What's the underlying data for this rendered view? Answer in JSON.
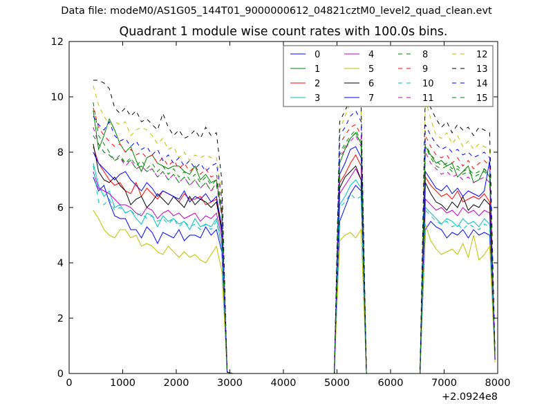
{
  "header": {
    "suptitle": "Data file: modeM0/AS1G05_144T01_9000000612_04821cztM0_level2_quad_clean.evt",
    "title": "Quadrant 1 module wise count rates with 100.0s bins."
  },
  "chart_data": {
    "type": "line",
    "title": "Quadrant 1 module wise count rates with 100.0s bins.",
    "xlabel": "",
    "ylabel": "",
    "x_offset_label": "+2.0924e8",
    "xlim": [
      0,
      8000
    ],
    "ylim": [
      0,
      12
    ],
    "xticks": [
      "0",
      "1000",
      "2000",
      "3000",
      "4000",
      "5000",
      "6000",
      "7000",
      "8000"
    ],
    "yticks": [
      "0",
      "2",
      "4",
      "6",
      "8",
      "10",
      "12"
    ],
    "grid": false,
    "legend_position": "top-right",
    "x": [
      450,
      550,
      650,
      750,
      850,
      950,
      1050,
      1150,
      1250,
      1350,
      1450,
      1550,
      1650,
      1750,
      1850,
      1950,
      2050,
      2150,
      2250,
      2350,
      2450,
      2550,
      2650,
      2750,
      2850,
      2950,
      3050,
      4950,
      5050,
      5150,
      5250,
      5350,
      5450,
      5550,
      6550,
      6650,
      6750,
      6850,
      6950,
      7050,
      7150,
      7250,
      7350,
      7450,
      7550,
      7650,
      7750,
      7850,
      7950
    ],
    "series": [
      {
        "name": "0",
        "color": "#0000ff",
        "dash": "solid",
        "values": [
          7.1,
          6.6,
          6.8,
          6.2,
          5.7,
          5.6,
          5.6,
          5.2,
          5.2,
          4.9,
          5.3,
          5.1,
          4.7,
          5.1,
          5.0,
          4.9,
          5.2,
          4.8,
          5.0,
          5.0,
          4.9,
          5.3,
          5.0,
          5.2,
          4.4,
          0.05,
          0.0,
          0.0,
          5.5,
          6.0,
          6.5,
          6.8,
          6.6,
          0.0,
          0.0,
          5.2,
          5.5,
          5.3,
          5.2,
          4.9,
          5.1,
          5.0,
          5.2,
          4.9,
          5.2,
          5.0,
          5.1,
          5.0,
          0.5
        ]
      },
      {
        "name": "1",
        "color": "#008000",
        "dash": "solid",
        "values": [
          9.5,
          8.1,
          8.6,
          9.2,
          8.8,
          8.3,
          8.0,
          8.2,
          7.7,
          7.3,
          7.8,
          7.9,
          7.6,
          7.5,
          7.4,
          7.5,
          7.5,
          7.3,
          7.2,
          7.5,
          7.0,
          7.2,
          6.9,
          7.0,
          5.8,
          0.05,
          0.0,
          0.0,
          7.6,
          8.1,
          8.5,
          8.7,
          8.3,
          0.0,
          0.0,
          8.2,
          7.9,
          7.6,
          7.7,
          7.5,
          7.6,
          7.1,
          7.3,
          7.5,
          6.9,
          7.0,
          7.4,
          7.1,
          0.6
        ]
      },
      {
        "name": "2",
        "color": "#ff0000",
        "dash": "solid",
        "values": [
          8.2,
          7.6,
          7.3,
          7.0,
          6.8,
          6.9,
          6.6,
          6.5,
          6.9,
          6.4,
          6.7,
          6.5,
          6.3,
          6.6,
          6.5,
          6.4,
          6.2,
          6.5,
          6.3,
          6.3,
          6.4,
          6.1,
          6.2,
          6.3,
          5.2,
          0.05,
          0.0,
          0.0,
          6.9,
          7.2,
          7.6,
          7.9,
          7.5,
          0.0,
          0.0,
          7.1,
          6.8,
          6.6,
          6.4,
          6.5,
          6.3,
          6.6,
          6.2,
          6.3,
          6.4,
          6.3,
          6.5,
          6.2,
          0.5
        ]
      },
      {
        "name": "3",
        "color": "#00bfbf",
        "dash": "solid",
        "values": [
          7.6,
          6.8,
          6.4,
          6.6,
          6.0,
          6.1,
          5.8,
          5.9,
          5.6,
          5.4,
          5.8,
          5.7,
          5.3,
          5.7,
          5.5,
          5.6,
          5.4,
          5.5,
          5.2,
          5.6,
          5.3,
          5.4,
          5.3,
          5.6,
          4.6,
          0.05,
          0.0,
          0.0,
          6.1,
          6.4,
          6.8,
          7.0,
          6.7,
          0.0,
          0.0,
          6.0,
          5.8,
          5.6,
          5.4,
          5.6,
          5.5,
          5.3,
          5.6,
          5.4,
          5.5,
          5.3,
          5.6,
          5.4,
          0.5
        ]
      },
      {
        "name": "4",
        "color": "#bf00bf",
        "dash": "solid",
        "values": [
          7.3,
          6.7,
          6.6,
          6.5,
          6.3,
          6.1,
          6.1,
          6.0,
          5.8,
          5.7,
          6.0,
          5.9,
          5.6,
          5.8,
          5.9,
          5.7,
          5.8,
          5.6,
          5.7,
          5.8,
          5.5,
          5.7,
          5.6,
          5.8,
          4.9,
          0.05,
          0.0,
          0.0,
          6.5,
          6.8,
          7.1,
          7.4,
          7.0,
          0.0,
          0.0,
          6.3,
          6.1,
          5.9,
          6.0,
          5.8,
          5.9,
          5.7,
          6.0,
          5.8,
          5.9,
          5.7,
          5.9,
          5.8,
          0.5
        ]
      },
      {
        "name": "5",
        "color": "#bfbf00",
        "dash": "solid",
        "values": [
          5.9,
          5.6,
          5.2,
          5.0,
          4.9,
          5.2,
          5.2,
          4.9,
          5.0,
          4.6,
          4.7,
          4.6,
          4.4,
          4.3,
          4.6,
          4.4,
          4.2,
          4.4,
          4.2,
          4.3,
          4.1,
          4.0,
          4.3,
          4.6,
          3.7,
          0.05,
          0.0,
          0.0,
          4.8,
          5.0,
          5.1,
          4.9,
          5.2,
          0.0,
          0.0,
          5.4,
          4.8,
          4.5,
          4.3,
          4.4,
          4.5,
          4.3,
          4.7,
          4.2,
          5.0,
          4.1,
          4.3,
          4.6,
          0.4
        ]
      },
      {
        "name": "6",
        "color": "#000000",
        "dash": "solid",
        "values": [
          8.3,
          7.3,
          7.0,
          6.9,
          7.1,
          6.8,
          6.6,
          6.1,
          6.3,
          6.4,
          6.0,
          6.2,
          6.5,
          6.3,
          6.1,
          6.4,
          6.2,
          6.0,
          6.4,
          6.1,
          6.3,
          6.2,
          6.0,
          6.2,
          5.1,
          0.05,
          0.0,
          0.0,
          6.7,
          7.1,
          7.3,
          7.5,
          7.0,
          0.0,
          0.0,
          6.9,
          6.5,
          6.2,
          6.1,
          5.9,
          6.2,
          6.0,
          6.4,
          5.9,
          6.1,
          6.0,
          6.3,
          6.1,
          0.5
        ]
      },
      {
        "name": "7",
        "color": "#0000ff",
        "dash": "solid",
        "values": [
          8.0,
          7.6,
          7.4,
          7.2,
          7.0,
          7.2,
          7.3,
          7.0,
          6.8,
          6.6,
          6.9,
          6.7,
          6.4,
          6.6,
          6.5,
          6.4,
          6.3,
          6.6,
          6.2,
          6.4,
          6.3,
          6.5,
          6.2,
          6.4,
          5.3,
          0.05,
          0.0,
          0.0,
          7.2,
          7.6,
          8.1,
          8.2,
          7.8,
          0.0,
          0.0,
          7.3,
          7.0,
          6.7,
          6.6,
          6.8,
          6.5,
          6.7,
          6.4,
          6.6,
          6.5,
          6.4,
          6.6,
          7.7,
          0.5
        ]
      },
      {
        "name": "8",
        "color": "#008000",
        "dash": "dashed",
        "values": [
          9.8,
          8.6,
          8.3,
          8.0,
          7.7,
          7.9,
          7.6,
          7.8,
          7.5,
          7.7,
          7.4,
          7.6,
          7.3,
          7.5,
          7.2,
          7.4,
          7.1,
          7.3,
          7.0,
          7.2,
          6.9,
          7.1,
          6.8,
          7.0,
          5.9,
          0.05,
          0.0,
          0.0,
          8.0,
          8.3,
          8.6,
          8.8,
          8.4,
          0.0,
          0.0,
          8.3,
          7.9,
          7.7,
          7.5,
          7.6,
          7.4,
          7.5,
          7.3,
          7.4,
          7.2,
          7.3,
          7.4,
          7.2,
          0.6
        ]
      },
      {
        "name": "9",
        "color": "#ff0000",
        "dash": "dashed",
        "values": [
          9.6,
          8.9,
          8.6,
          8.4,
          8.2,
          8.3,
          8.0,
          8.1,
          7.9,
          8.0,
          7.8,
          7.9,
          7.6,
          7.8,
          7.5,
          7.7,
          7.4,
          7.6,
          7.3,
          7.5,
          7.2,
          7.4,
          7.1,
          7.2,
          6.0,
          0.05,
          0.0,
          0.0,
          8.3,
          8.6,
          8.9,
          9.0,
          8.6,
          0.0,
          0.0,
          8.6,
          8.2,
          7.9,
          7.8,
          7.9,
          7.6,
          7.8,
          7.5,
          7.7,
          7.4,
          7.6,
          7.7,
          7.5,
          0.6
        ]
      },
      {
        "name": "10",
        "color": "#00bfbf",
        "dash": "dashed",
        "values": [
          7.5,
          6.2,
          6.1,
          6.3,
          5.9,
          6.0,
          5.8,
          5.9,
          5.7,
          5.8,
          5.6,
          5.7,
          5.5,
          5.6,
          5.4,
          5.6,
          5.3,
          5.5,
          5.3,
          5.4,
          5.2,
          5.4,
          5.2,
          5.5,
          4.6,
          0.05,
          0.0,
          0.0,
          6.0,
          6.2,
          6.5,
          6.3,
          6.4,
          0.0,
          0.0,
          5.9,
          5.7,
          5.5,
          5.4,
          5.5,
          5.3,
          5.4,
          5.2,
          5.4,
          5.3,
          5.2,
          5.4,
          5.3,
          0.5
        ]
      },
      {
        "name": "11",
        "color": "#bf00bf",
        "dash": "dashed",
        "values": [
          8.9,
          8.3,
          8.0,
          7.9,
          7.7,
          7.8,
          7.5,
          7.7,
          7.4,
          7.5,
          7.3,
          7.4,
          7.1,
          7.3,
          7.0,
          7.2,
          6.9,
          7.1,
          6.8,
          7.0,
          6.7,
          6.9,
          6.6,
          6.8,
          5.7,
          0.05,
          0.0,
          0.0,
          7.8,
          8.1,
          8.4,
          8.6,
          8.2,
          0.0,
          0.0,
          8.0,
          7.6,
          7.4,
          7.2,
          7.3,
          7.1,
          7.2,
          7.0,
          7.1,
          6.9,
          7.0,
          7.1,
          6.9,
          0.6
        ]
      },
      {
        "name": "12",
        "color": "#bfbf00",
        "dash": "dashed",
        "values": [
          10.4,
          9.7,
          9.3,
          9.0,
          9.1,
          9.0,
          9.1,
          8.6,
          8.8,
          8.9,
          8.8,
          8.6,
          8.3,
          8.5,
          8.1,
          8.2,
          7.8,
          8.0,
          7.7,
          7.9,
          7.8,
          7.9,
          7.8,
          7.8,
          6.5,
          0.05,
          0.0,
          0.0,
          8.8,
          9.3,
          9.8,
          9.9,
          9.5,
          0.0,
          0.0,
          9.9,
          9.2,
          8.6,
          8.5,
          8.7,
          8.3,
          8.6,
          8.2,
          8.4,
          8.1,
          8.3,
          8.2,
          8.1,
          0.7
        ]
      },
      {
        "name": "13",
        "color": "#000000",
        "dash": "dashed",
        "values": [
          10.6,
          10.6,
          10.5,
          10.3,
          9.6,
          9.4,
          9.6,
          9.3,
          9.5,
          9.1,
          9.2,
          9.0,
          8.8,
          9.4,
          8.9,
          8.6,
          8.8,
          8.5,
          8.6,
          8.8,
          8.5,
          8.9,
          8.6,
          8.7,
          7.0,
          0.05,
          0.0,
          0.0,
          9.1,
          9.5,
          9.9,
          10.1,
          9.7,
          0.0,
          0.0,
          10.3,
          9.6,
          9.2,
          8.9,
          9.1,
          8.7,
          9.0,
          8.8,
          8.9,
          8.6,
          8.9,
          8.8,
          8.7,
          0.8
        ]
      },
      {
        "name": "14",
        "color": "#0000ff",
        "dash": "dashed",
        "values": [
          9.3,
          9.0,
          8.8,
          9.1,
          8.6,
          8.4,
          8.5,
          8.2,
          8.4,
          8.1,
          8.2,
          7.9,
          8.1,
          7.7,
          7.9,
          7.6,
          7.8,
          7.5,
          7.7,
          7.4,
          7.6,
          7.3,
          7.5,
          7.6,
          6.3,
          0.05,
          0.0,
          0.0,
          8.6,
          8.9,
          9.3,
          9.5,
          9.1,
          0.0,
          0.0,
          9.0,
          8.6,
          8.3,
          8.1,
          8.2,
          8.0,
          8.1,
          7.9,
          8.0,
          7.8,
          7.9,
          8.0,
          7.8,
          0.7
        ]
      },
      {
        "name": "15",
        "color": "#008000",
        "dash": "dashed",
        "values": [
          8.6,
          8.3,
          8.0,
          7.9,
          7.7,
          7.8,
          7.6,
          7.7,
          7.4,
          7.5,
          7.3,
          7.4,
          7.1,
          7.3,
          7.0,
          7.2,
          6.9,
          7.1,
          6.8,
          7.0,
          6.7,
          6.9,
          6.6,
          6.9,
          5.7,
          0.05,
          0.0,
          0.0,
          7.9,
          8.2,
          8.5,
          8.7,
          8.3,
          0.0,
          0.0,
          8.2,
          7.8,
          7.5,
          7.4,
          7.5,
          7.3,
          7.4,
          7.2,
          7.3,
          7.1,
          7.2,
          7.3,
          7.1,
          0.6
        ]
      }
    ]
  }
}
